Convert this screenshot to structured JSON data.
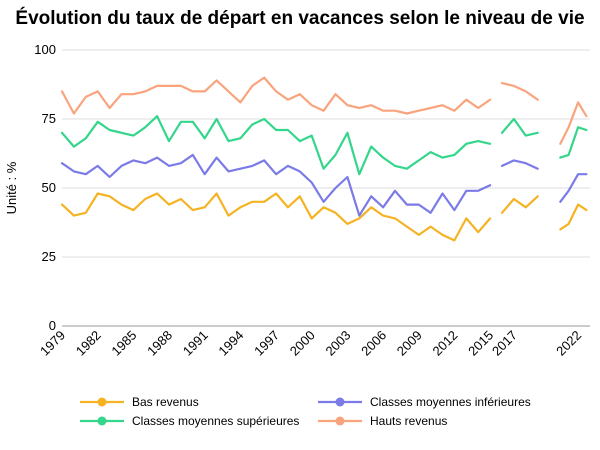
{
  "chart_data": {
    "type": "line",
    "title": "Évolution du taux de départ en vacances selon le niveau de vie",
    "xlabel": "",
    "ylabel": "Unité : %",
    "ylim": [
      0,
      100
    ],
    "yticks": [
      0,
      25,
      50,
      75,
      100
    ],
    "xtick_labels": [
      "1979",
      "1982",
      "1985",
      "1988",
      "1991",
      "1994",
      "1997",
      "2000",
      "2003",
      "2006",
      "2009",
      "2012",
      "2015",
      "2017",
      "2022"
    ],
    "grid": true,
    "legend_position": "bottom",
    "series": [
      {
        "name": "Bas revenus",
        "color": "#f5b324",
        "segments": [
          {
            "x": [
              1979,
              1980,
              1981,
              1982,
              1983,
              1984,
              1985,
              1986,
              1987,
              1988,
              1989,
              1990,
              1991,
              1992,
              1993,
              1994,
              1995,
              1996,
              1997,
              1998,
              1999,
              2000,
              2001,
              2002,
              2003,
              2004,
              2005,
              2006,
              2007,
              2008,
              2009,
              2010,
              2011,
              2012,
              2013,
              2014,
              2015
            ],
            "y": [
              44,
              40,
              41,
              48,
              47,
              44,
              42,
              46,
              48,
              44,
              46,
              42,
              43,
              48,
              40,
              43,
              45,
              45,
              48,
              43,
              47,
              39,
              43,
              41,
              37,
              39,
              43,
              40,
              39,
              36,
              33,
              36,
              33,
              31,
              39,
              34,
              39
            ]
          },
          {
            "x": [
              2016,
              2017,
              2018,
              2019
            ],
            "y": [
              41,
              46,
              43,
              47
            ]
          },
          {
            "x": [
              2020.9,
              2021.6,
              2022.4,
              2023.1
            ],
            "y": [
              35,
              37,
              44,
              42
            ]
          }
        ]
      },
      {
        "name": "Classes moyennes inférieures",
        "color": "#7b7be8",
        "segments": [
          {
            "x": [
              1979,
              1980,
              1981,
              1982,
              1983,
              1984,
              1985,
              1986,
              1987,
              1988,
              1989,
              1990,
              1991,
              1992,
              1993,
              1994,
              1995,
              1996,
              1997,
              1998,
              1999,
              2000,
              2001,
              2002,
              2003,
              2004,
              2005,
              2006,
              2007,
              2008,
              2009,
              2010,
              2011,
              2012,
              2013,
              2014,
              2015
            ],
            "y": [
              59,
              56,
              55,
              58,
              54,
              58,
              60,
              59,
              61,
              58,
              59,
              62,
              55,
              61,
              56,
              57,
              58,
              60,
              55,
              58,
              56,
              52,
              45,
              50,
              54,
              40,
              47,
              43,
              49,
              44,
              44,
              41,
              48,
              42,
              49,
              49,
              51
            ]
          },
          {
            "x": [
              2016,
              2017,
              2018,
              2019
            ],
            "y": [
              58,
              60,
              59,
              57
            ]
          },
          {
            "x": [
              2020.9,
              2021.6,
              2022.4,
              2023.1
            ],
            "y": [
              45,
              49,
              55,
              55
            ]
          }
        ]
      },
      {
        "name": "Classes moyennes supérieures",
        "color": "#33d68a",
        "segments": [
          {
            "x": [
              1979,
              1980,
              1981,
              1982,
              1983,
              1984,
              1985,
              1986,
              1987,
              1988,
              1989,
              1990,
              1991,
              1992,
              1993,
              1994,
              1995,
              1996,
              1997,
              1998,
              1999,
              2000,
              2001,
              2002,
              2003,
              2004,
              2005,
              2006,
              2007,
              2008,
              2009,
              2010,
              2011,
              2012,
              2013,
              2014,
              2015
            ],
            "y": [
              70,
              65,
              68,
              74,
              71,
              70,
              69,
              72,
              76,
              67,
              74,
              74,
              68,
              75,
              67,
              68,
              73,
              75,
              71,
              71,
              67,
              69,
              57,
              62,
              70,
              55,
              65,
              61,
              58,
              57,
              60,
              63,
              61,
              62,
              66,
              67,
              66
            ]
          },
          {
            "x": [
              2016,
              2017,
              2018,
              2019
            ],
            "y": [
              70,
              75,
              69,
              70
            ]
          },
          {
            "x": [
              2020.9,
              2021.6,
              2022.4,
              2023.1
            ],
            "y": [
              61,
              62,
              72,
              71
            ]
          }
        ]
      },
      {
        "name": "Hauts revenus",
        "color": "#f9a47c",
        "segments": [
          {
            "x": [
              1979,
              1980,
              1981,
              1982,
              1983,
              1984,
              1985,
              1986,
              1987,
              1988,
              1989,
              1990,
              1991,
              1992,
              1993,
              1994,
              1995,
              1996,
              1997,
              1998,
              1999,
              2000,
              2001,
              2002,
              2003,
              2004,
              2005,
              2006,
              2007,
              2008,
              2009,
              2010,
              2011,
              2012,
              2013,
              2014,
              2015
            ],
            "y": [
              85,
              77,
              83,
              85,
              79,
              84,
              84,
              85,
              87,
              87,
              87,
              85,
              85,
              89,
              85,
              81,
              87,
              90,
              85,
              82,
              84,
              80,
              78,
              84,
              80,
              79,
              80,
              78,
              78,
              77,
              78,
              79,
              80,
              78,
              82,
              79,
              82
            ]
          },
          {
            "x": [
              2016,
              2017,
              2018,
              2019
            ],
            "y": [
              88,
              87,
              85,
              82
            ]
          },
          {
            "x": [
              2020.9,
              2021.6,
              2022.4,
              2023.1
            ],
            "y": [
              66,
              72,
              81,
              76
            ]
          }
        ]
      }
    ]
  }
}
